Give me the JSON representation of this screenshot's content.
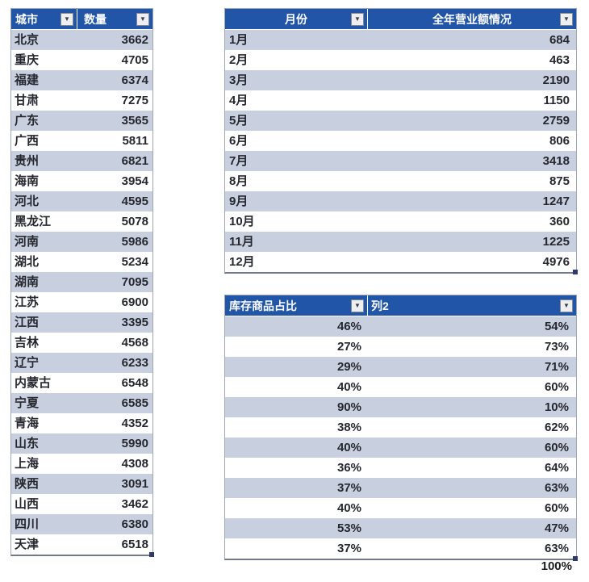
{
  "colors": {
    "header_bg": "#2055A8",
    "band": "#C8CFDF",
    "row_white": "#FFFFFF",
    "body_text": "#262830",
    "header_text": "#FFFFFF",
    "table_border": "#9FA6B4",
    "handle": "#2D3A6B"
  },
  "icons": {
    "dropdown_arrow": "▼"
  },
  "city_table": {
    "headers": [
      "城市",
      "数量"
    ],
    "rows": [
      [
        "北京",
        "3662"
      ],
      [
        "重庆",
        "4705"
      ],
      [
        "福建",
        "6374"
      ],
      [
        "甘肃",
        "7275"
      ],
      [
        "广东",
        "3565"
      ],
      [
        "广西",
        "5811"
      ],
      [
        "贵州",
        "6821"
      ],
      [
        "海南",
        "3954"
      ],
      [
        "河北",
        "4595"
      ],
      [
        "黑龙江",
        "5078"
      ],
      [
        "河南",
        "5986"
      ],
      [
        "湖北",
        "5234"
      ],
      [
        "湖南",
        "7095"
      ],
      [
        "江苏",
        "6900"
      ],
      [
        "江西",
        "3395"
      ],
      [
        "吉林",
        "4568"
      ],
      [
        "辽宁",
        "6233"
      ],
      [
        "内蒙古",
        "6548"
      ],
      [
        "宁夏",
        "6585"
      ],
      [
        "青海",
        "4352"
      ],
      [
        "山东",
        "5990"
      ],
      [
        "上海",
        "4308"
      ],
      [
        "陕西",
        "3091"
      ],
      [
        "山西",
        "3462"
      ],
      [
        "四川",
        "6380"
      ],
      [
        "天津",
        "6518"
      ]
    ]
  },
  "month_table": {
    "headers": [
      "月份",
      "全年营业额情况"
    ],
    "rows": [
      [
        "1月",
        "684"
      ],
      [
        "2月",
        "463"
      ],
      [
        "3月",
        "2190"
      ],
      [
        "4月",
        "1150"
      ],
      [
        "5月",
        "2759"
      ],
      [
        "6月",
        "806"
      ],
      [
        "7月",
        "3418"
      ],
      [
        "8月",
        "875"
      ],
      [
        "9月",
        "1247"
      ],
      [
        "10月",
        "360"
      ],
      [
        "11月",
        "1225"
      ],
      [
        "12月",
        "4976"
      ]
    ]
  },
  "percent_table": {
    "headers": [
      "库存商品占比",
      "列2"
    ],
    "rows": [
      [
        "46%",
        "54%"
      ],
      [
        "27%",
        "73%"
      ],
      [
        "29%",
        "71%"
      ],
      [
        "40%",
        "60%"
      ],
      [
        "90%",
        "10%"
      ],
      [
        "38%",
        "62%"
      ],
      [
        "40%",
        "60%"
      ],
      [
        "36%",
        "64%"
      ],
      [
        "37%",
        "63%"
      ],
      [
        "40%",
        "60%"
      ],
      [
        "53%",
        "47%"
      ],
      [
        "37%",
        "63%"
      ]
    ],
    "total": "100%"
  }
}
